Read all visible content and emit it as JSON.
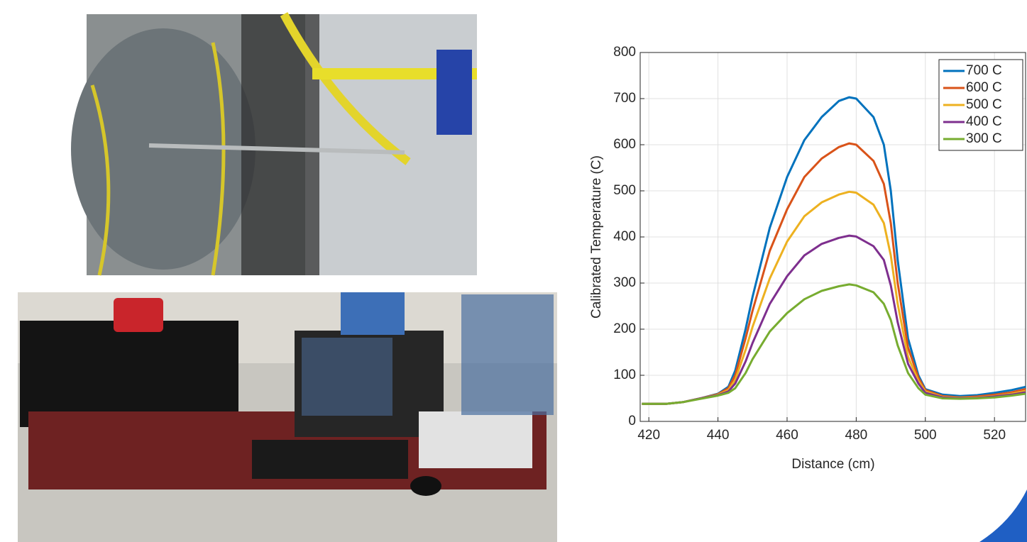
{
  "chart_data": {
    "type": "line",
    "x_label": "Distance (cm)",
    "y_label": "Calibrated Temperature (C)",
    "x": [
      418,
      425,
      430,
      435,
      440,
      443,
      445,
      448,
      450,
      455,
      460,
      465,
      470,
      475,
      478,
      480,
      485,
      488,
      490,
      492,
      495,
      498,
      500,
      505,
      510,
      515,
      520,
      525,
      529
    ],
    "series": [
      {
        "name": "700 C",
        "color": "#0072BD",
        "values": [
          38,
          38,
          42,
          50,
          60,
          75,
          110,
          200,
          270,
          420,
          530,
          610,
          660,
          695,
          703,
          700,
          660,
          600,
          500,
          350,
          180,
          100,
          70,
          58,
          55,
          57,
          62,
          68,
          75
        ]
      },
      {
        "name": "600 C",
        "color": "#D95319",
        "values": [
          38,
          38,
          42,
          50,
          59,
          72,
          100,
          180,
          240,
          370,
          460,
          530,
          570,
          595,
          603,
          600,
          565,
          515,
          430,
          300,
          160,
          95,
          68,
          55,
          52,
          54,
          58,
          63,
          70
        ]
      },
      {
        "name": "500 C",
        "color": "#EDB120",
        "values": [
          38,
          38,
          42,
          50,
          58,
          68,
          90,
          155,
          205,
          310,
          390,
          445,
          475,
          492,
          498,
          496,
          470,
          430,
          360,
          255,
          140,
          88,
          65,
          53,
          51,
          52,
          55,
          60,
          66
        ]
      },
      {
        "name": "400 C",
        "color": "#7E2F8E",
        "values": [
          38,
          38,
          42,
          50,
          57,
          65,
          82,
          130,
          170,
          255,
          315,
          360,
          385,
          398,
          403,
          401,
          380,
          350,
          295,
          215,
          125,
          82,
          62,
          52,
          50,
          51,
          54,
          58,
          63
        ]
      },
      {
        "name": "300 C",
        "color": "#77AC30",
        "values": [
          38,
          38,
          42,
          49,
          56,
          62,
          72,
          105,
          135,
          195,
          235,
          265,
          283,
          293,
          297,
          295,
          280,
          255,
          220,
          165,
          105,
          72,
          58,
          50,
          49,
          50,
          52,
          56,
          60
        ]
      }
    ],
    "xlim": [
      417.5,
      529
    ],
    "ylim": [
      0,
      800
    ],
    "xticks": [
      420,
      440,
      460,
      480,
      500,
      520
    ],
    "yticks": [
      0,
      100,
      200,
      300,
      400,
      500,
      600,
      700,
      800
    ],
    "grid": true,
    "legend": "top-right"
  }
}
